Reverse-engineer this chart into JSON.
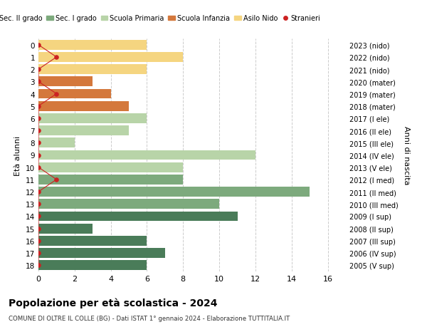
{
  "ages": [
    18,
    17,
    16,
    15,
    14,
    13,
    12,
    11,
    10,
    9,
    8,
    7,
    6,
    5,
    4,
    3,
    2,
    1,
    0
  ],
  "right_labels": [
    "2005 (V sup)",
    "2006 (IV sup)",
    "2007 (III sup)",
    "2008 (II sup)",
    "2009 (I sup)",
    "2010 (III med)",
    "2011 (II med)",
    "2012 (I med)",
    "2013 (V ele)",
    "2014 (IV ele)",
    "2015 (III ele)",
    "2016 (II ele)",
    "2017 (I ele)",
    "2018 (mater)",
    "2019 (mater)",
    "2020 (mater)",
    "2021 (nido)",
    "2022 (nido)",
    "2023 (nido)"
  ],
  "bar_values": [
    6,
    7,
    6,
    3,
    11,
    10,
    15,
    8,
    8,
    12,
    2,
    5,
    6,
    5,
    4,
    3,
    6,
    8,
    6
  ],
  "bar_colors": [
    "#4a7c59",
    "#4a7c59",
    "#4a7c59",
    "#4a7c59",
    "#4a7c59",
    "#7daa7d",
    "#7daa7d",
    "#7daa7d",
    "#b8d4a8",
    "#b8d4a8",
    "#b8d4a8",
    "#b8d4a8",
    "#b8d4a8",
    "#d4783c",
    "#d4783c",
    "#d4783c",
    "#f5d580",
    "#f5d580",
    "#f5d580"
  ],
  "stranieri_x": [
    0,
    0,
    0,
    0,
    0,
    0,
    0,
    1,
    0,
    0,
    0,
    0,
    0,
    0,
    1,
    0,
    0,
    1,
    0
  ],
  "legend_labels": [
    "Sec. II grado",
    "Sec. I grado",
    "Scuola Primaria",
    "Scuola Infanzia",
    "Asilo Nido",
    "Stranieri"
  ],
  "legend_colors": [
    "#4a7c59",
    "#7daa7d",
    "#b8d4a8",
    "#d4783c",
    "#f5d580",
    "#cc2222"
  ],
  "title": "Popolazione per età scolastica - 2024",
  "subtitle": "COMUNE DI OLTRE IL COLLE (BG) - Dati ISTAT 1° gennaio 2024 - Elaborazione TUTTITALIA.IT",
  "ylabel_left": "Età alunni",
  "ylabel_right": "Anni di nascita",
  "xlim": [
    0,
    17
  ],
  "background_color": "#ffffff",
  "grid_color": "#cccccc"
}
